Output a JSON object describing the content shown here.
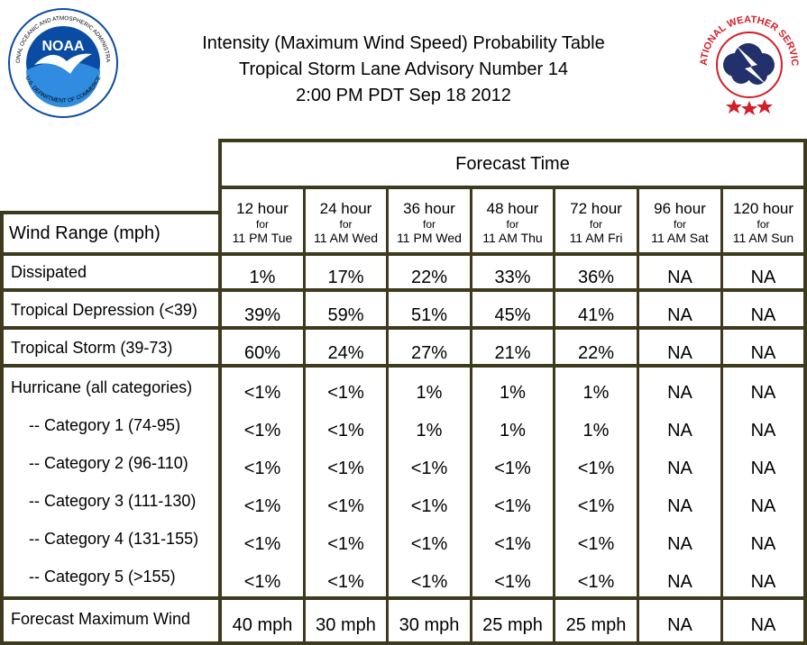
{
  "header": {
    "title_lines": [
      "Intensity (Maximum Wind Speed) Probability Table",
      "Tropical Storm Lane Advisory Number 14",
      "2:00 PM PDT Sep 18 2012"
    ]
  },
  "logos": {
    "noaa": {
      "text": "NOAA",
      "ring_text": "NATIONAL OCEANIC AND ATMOSPHERIC ADMINISTRATION",
      "ring_text_bottom": "U.S. DEPARTMENT OF COMMERCE",
      "colors": {
        "blue": "#0a4ca3",
        "light_blue": "#2f8ce0"
      }
    },
    "nws": {
      "ring_text": "NATIONAL WEATHER SERVICE",
      "colors": {
        "red": "#d21f2a",
        "navy": "#22306b",
        "lightning": "#ffffff"
      }
    }
  },
  "table": {
    "forecast_header": "Forecast Time",
    "wind_range_header": "Wind Range (mph)",
    "columns": [
      {
        "hours": "12 hour",
        "for": "for",
        "time": "11 PM Tue"
      },
      {
        "hours": "24 hour",
        "for": "for",
        "time": "11 AM Wed"
      },
      {
        "hours": "36 hour",
        "for": "for",
        "time": "11 PM Wed"
      },
      {
        "hours": "48 hour",
        "for": "for",
        "time": "11 AM Thu"
      },
      {
        "hours": "72 hour",
        "for": "for",
        "time": "11 AM Fri"
      },
      {
        "hours": "96 hour",
        "for": "for",
        "time": "11 AM Sat"
      },
      {
        "hours": "120 hour",
        "for": "for",
        "time": "11 AM Sun"
      }
    ],
    "rows": {
      "dissipated": {
        "label": "Dissipated",
        "values": [
          "1%",
          "17%",
          "22%",
          "33%",
          "36%",
          "NA",
          "NA"
        ]
      },
      "depression": {
        "label": "Tropical Depression (<39)",
        "values": [
          "39%",
          "59%",
          "51%",
          "45%",
          "41%",
          "NA",
          "NA"
        ]
      },
      "storm": {
        "label": "Tropical Storm (39-73)",
        "values": [
          "60%",
          "24%",
          "27%",
          "21%",
          "22%",
          "NA",
          "NA"
        ]
      },
      "hurricane": {
        "label": "Hurricane (all categories)",
        "values": [
          "<1%",
          "<1%",
          "1%",
          "1%",
          "1%",
          "NA",
          "NA"
        ]
      },
      "cat1": {
        "label": "-- Category 1 (74-95)",
        "values": [
          "<1%",
          "<1%",
          "1%",
          "1%",
          "1%",
          "NA",
          "NA"
        ]
      },
      "cat2": {
        "label": "-- Category 2 (96-110)",
        "values": [
          "<1%",
          "<1%",
          "<1%",
          "<1%",
          "<1%",
          "NA",
          "NA"
        ]
      },
      "cat3": {
        "label": "-- Category 3 (111-130)",
        "values": [
          "<1%",
          "<1%",
          "<1%",
          "<1%",
          "<1%",
          "NA",
          "NA"
        ]
      },
      "cat4": {
        "label": "-- Category 4 (131-155)",
        "values": [
          "<1%",
          "<1%",
          "<1%",
          "<1%",
          "<1%",
          "NA",
          "NA"
        ]
      },
      "cat5": {
        "label": "-- Category 5 (>155)",
        "values": [
          "<1%",
          "<1%",
          "<1%",
          "<1%",
          "<1%",
          "NA",
          "NA"
        ]
      },
      "max_wind": {
        "label": "Forecast Maximum Wind",
        "values": [
          "40 mph",
          "30 mph",
          "30 mph",
          "25 mph",
          "25 mph",
          "NA",
          "NA"
        ]
      }
    },
    "border_color": "#3e3a1d"
  }
}
